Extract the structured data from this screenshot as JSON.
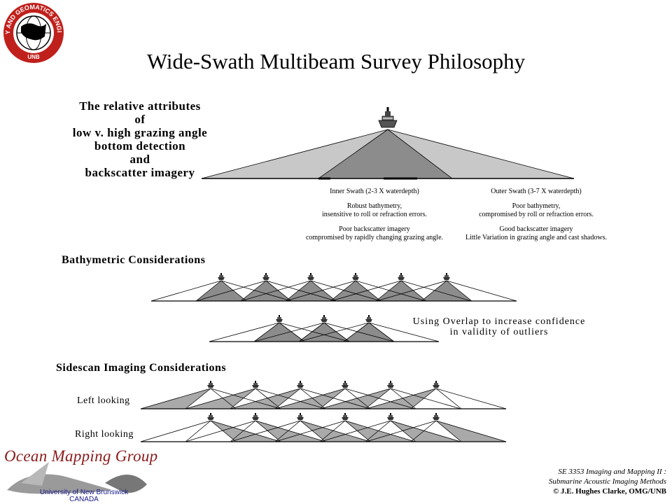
{
  "logo": {
    "ring_text": "GEODESY AND GEOMATICS ENGINEERING",
    "bottom_text": "UNB"
  },
  "title": "Wide-Swath Multibeam Survey Philosophy",
  "relative_attributes": "The relative attributes\nof\nlow v. high grazing angle\nbottom detection\nand\nbackscatter imagery",
  "inner_swath": {
    "heading": "Inner Swath (2-3 X waterdepth)",
    "bathy_1": "Robust bathymetry,",
    "bathy_2": "insensitive to roll or refraction errors.",
    "backscatter_1": "Poor backscatter imagery",
    "backscatter_2": "compromised by rapidly changing grazing angle."
  },
  "outer_swath": {
    "heading": "Outer Swath (3-7 X waterdepth)",
    "bathy_1": "Poor bathymetry,",
    "bathy_2": "compromised by roll or refraction errors.",
    "backscatter_1": "Good backscatter imagery",
    "backscatter_2": "Little Variation in grazing angle and cast shadows."
  },
  "bathymetric_heading": "Bathymetric Considerations",
  "overlap_note": {
    "line1": "Using Overlap to increase confidence",
    "line2": "in validity of outliers"
  },
  "sidescan_heading": "Sidescan Imaging Considerations",
  "left_looking": "Left looking",
  "right_looking": "Right looking",
  "footer": {
    "group": "Ocean Mapping Group",
    "university": "University of New Brunswick",
    "country": "CANADA",
    "course_1": "SE 3353 Imaging and Mapping II :",
    "course_2": "Submarine Acoustic Imaging Methods",
    "credit": "© J.E. Hughes Clarke, OMG/UNB"
  },
  "colors": {
    "light_grey": "#c8c8c8",
    "dark_grey": "#8c8c8c",
    "mid_grey": "#a9a9a9",
    "logo_red": "#c0201c",
    "group_red": "#8b1a1a",
    "unb_blue": "#1a1a8c"
  },
  "icons": [
    "ship-icon",
    "unb-logo-icon",
    "whale-graphic"
  ]
}
